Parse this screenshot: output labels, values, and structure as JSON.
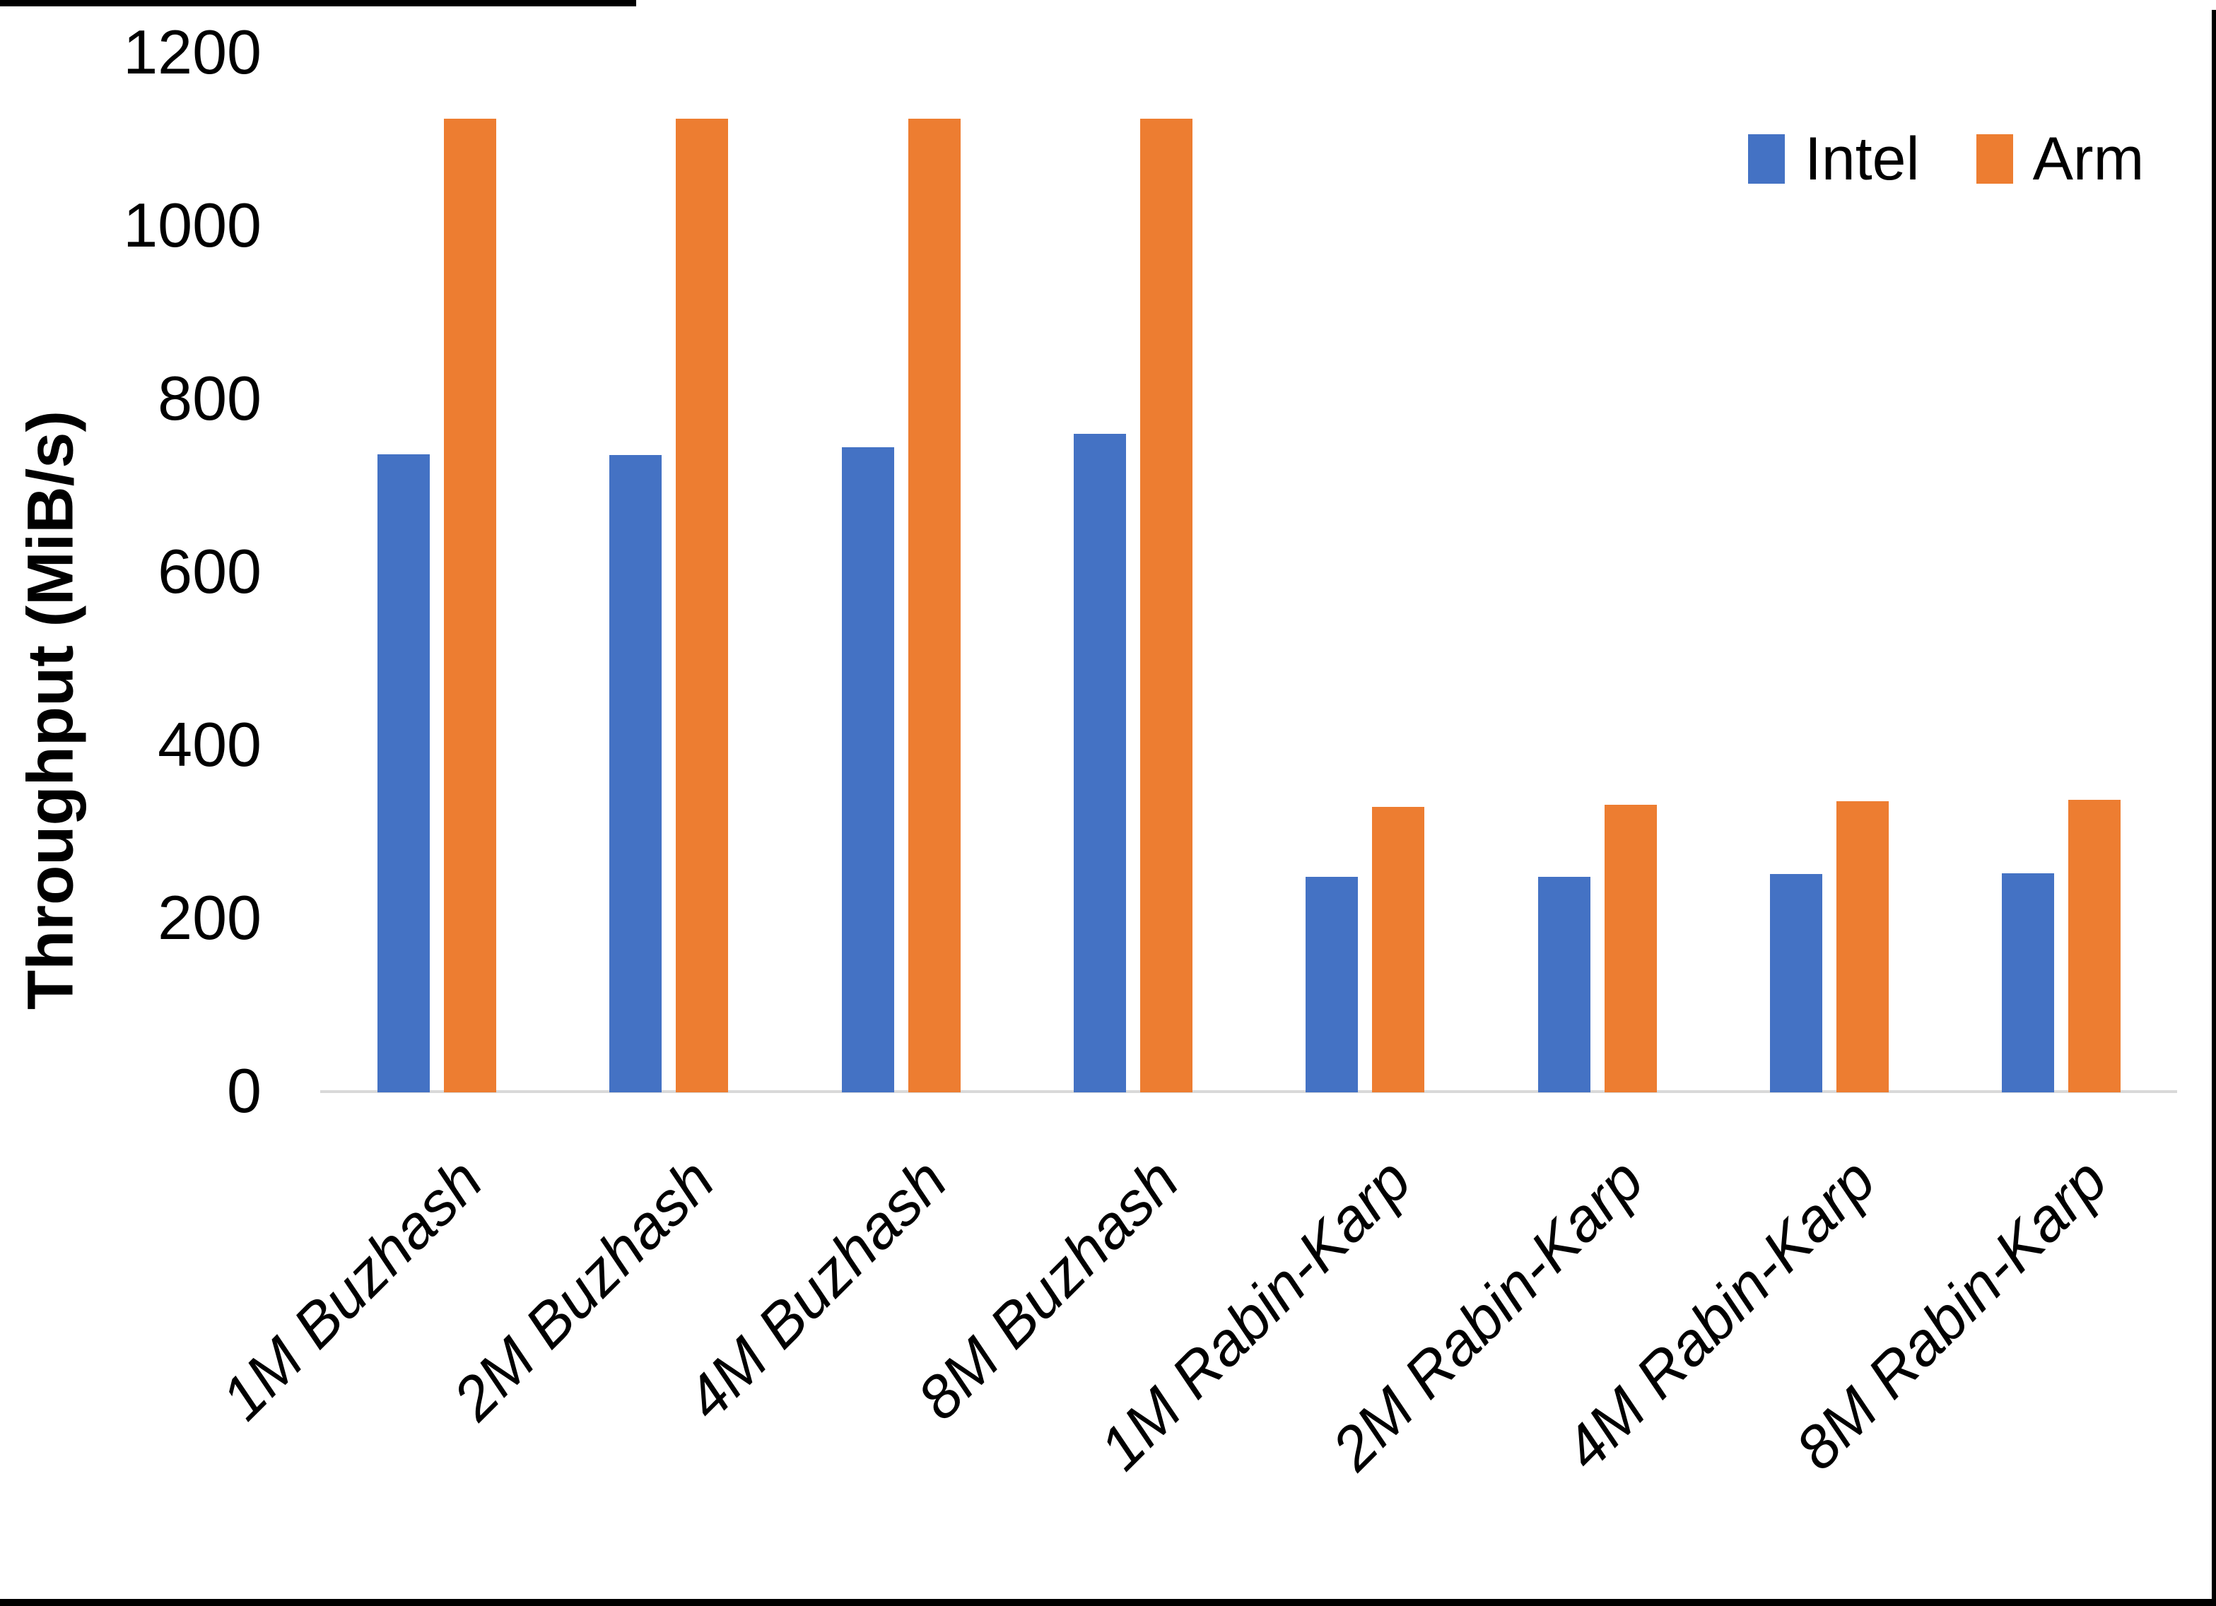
{
  "chart_data": {
    "type": "bar",
    "title": "",
    "xlabel": "",
    "ylabel": "Throughput (MiB/s)",
    "ylim": [
      0,
      1200
    ],
    "yticks": [
      0,
      200,
      400,
      600,
      800,
      1000,
      1200
    ],
    "grid": false,
    "legend_position": "top-right",
    "categories": [
      "1M Buzhash",
      "2M Buzhash",
      "4M Buzhash",
      "8M Buzhash",
      "1M Rabin-Karp",
      "2M Rabin-Karp",
      "4M Rabin-Karp",
      "8M Rabin-Karp"
    ],
    "series": [
      {
        "name": "Intel",
        "color": "#4472C4",
        "values": [
          737,
          736,
          745,
          761,
          249,
          249,
          252,
          253
        ]
      },
      {
        "name": "Arm",
        "color": "#ED7D31",
        "values": [
          1125,
          1125,
          1125,
          1125,
          330,
          332,
          336,
          338
        ]
      }
    ]
  },
  "colors": {
    "intel_blue": "#4472C4",
    "arm_orange": "#ED7D31",
    "axis_line": "#D9D9D9",
    "text": "#000000",
    "background": "#FFFFFF",
    "frame": "#000000"
  }
}
